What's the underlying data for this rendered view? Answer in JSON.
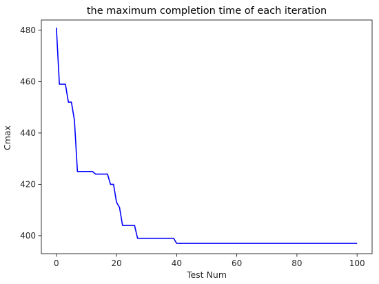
{
  "chart_data": {
    "type": "line",
    "title": "the maximum completion time of each iteration",
    "xlabel": "Test Num",
    "ylabel": "Cmax",
    "xlim": [
      -5,
      105
    ],
    "ylim": [
      393,
      484
    ],
    "xticks": [
      0,
      20,
      40,
      60,
      80,
      100
    ],
    "yticks": [
      400,
      420,
      440,
      460,
      480
    ],
    "grid": false,
    "series": [
      {
        "color": "#0000ff",
        "x": [
          0,
          1,
          2,
          3,
          4,
          5,
          6,
          7,
          8,
          9,
          10,
          11,
          12,
          13,
          14,
          15,
          16,
          17,
          18,
          19,
          20,
          21,
          22,
          23,
          24,
          25,
          26,
          27,
          28,
          29,
          30,
          31,
          32,
          33,
          34,
          35,
          36,
          37,
          38,
          39,
          40,
          41,
          42,
          43,
          44,
          45,
          46,
          47,
          48,
          49,
          50,
          51,
          52,
          53,
          54,
          55,
          56,
          57,
          58,
          59,
          60,
          61,
          62,
          63,
          64,
          65,
          66,
          67,
          68,
          69,
          70,
          71,
          72,
          73,
          74,
          75,
          76,
          77,
          78,
          79,
          80,
          81,
          82,
          83,
          84,
          85,
          86,
          87,
          88,
          89,
          90,
          91,
          92,
          93,
          94,
          95,
          96,
          97,
          98,
          99,
          100
        ],
        "y": [
          481,
          459,
          459,
          459,
          452,
          452,
          445,
          425,
          425,
          425,
          425,
          425,
          425,
          424,
          424,
          424,
          424,
          424,
          420,
          420,
          413,
          411,
          404,
          404,
          404,
          404,
          404,
          399,
          399,
          399,
          399,
          399,
          399,
          399,
          399,
          399,
          399,
          399,
          399,
          399,
          397,
          397,
          397,
          397,
          397,
          397,
          397,
          397,
          397,
          397,
          397,
          397,
          397,
          397,
          397,
          397,
          397,
          397,
          397,
          397,
          397,
          397,
          397,
          397,
          397,
          397,
          397,
          397,
          397,
          397,
          397,
          397,
          397,
          397,
          397,
          397,
          397,
          397,
          397,
          397,
          397,
          397,
          397,
          397,
          397,
          397,
          397,
          397,
          397,
          397,
          397,
          397,
          397,
          397,
          397,
          397,
          397,
          397,
          397,
          397,
          397
        ]
      }
    ]
  }
}
